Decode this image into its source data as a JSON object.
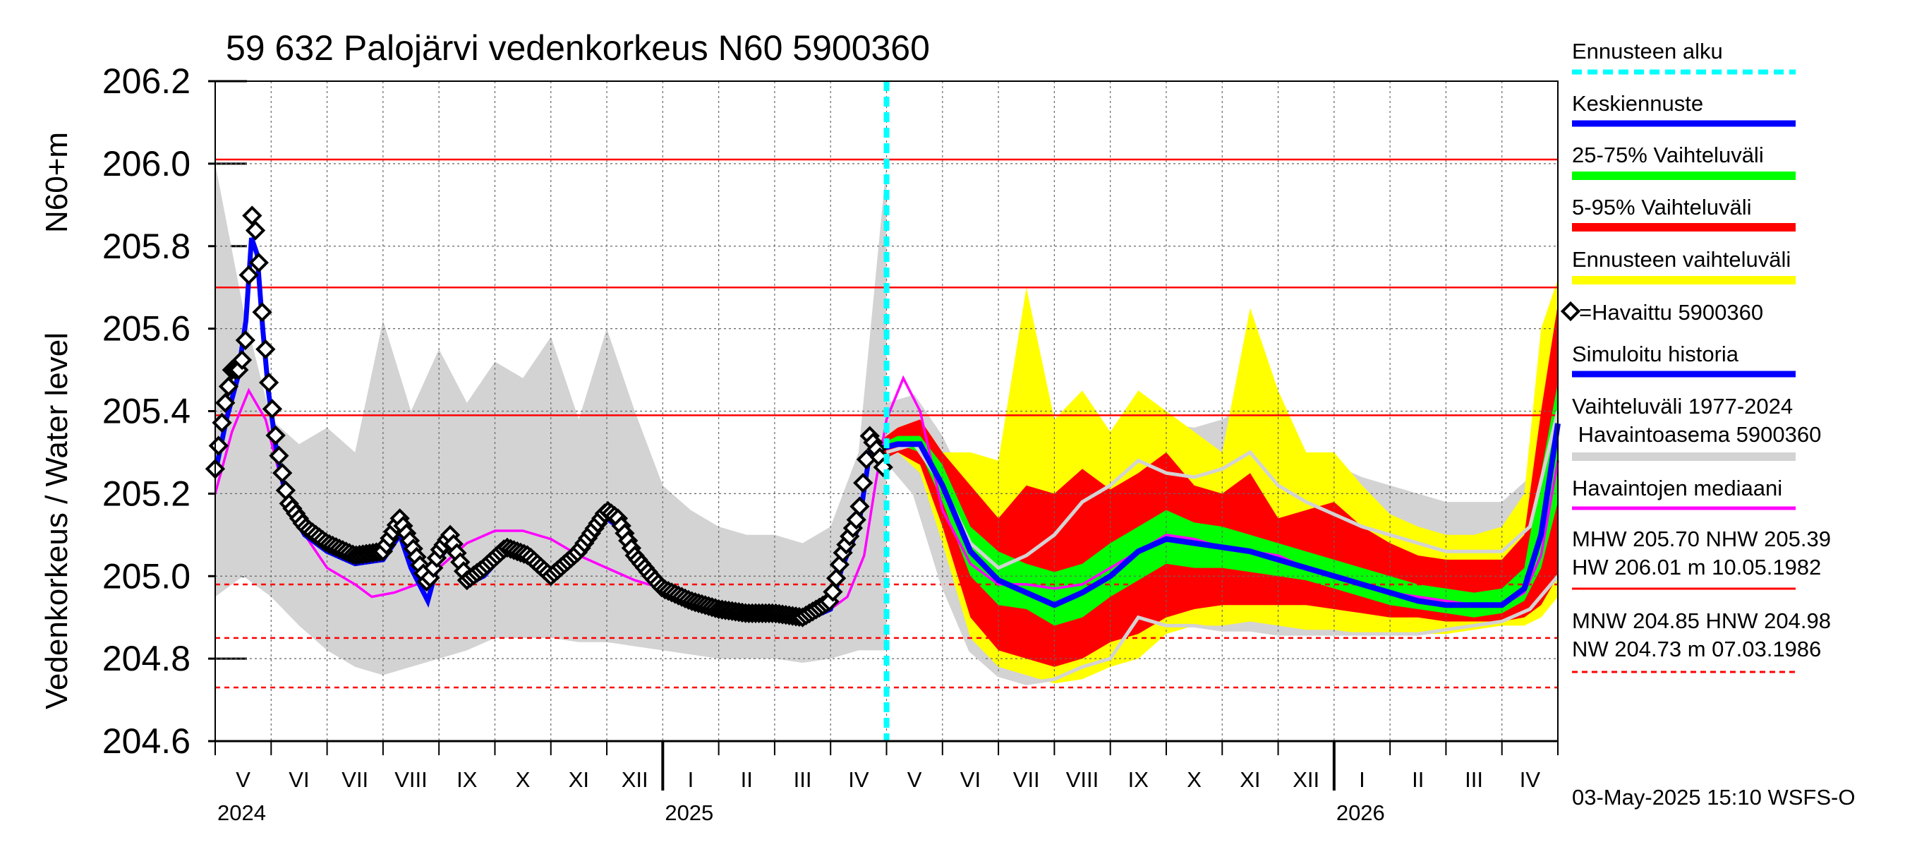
{
  "chart_data": {
    "type": "area",
    "title": "59 632 Palojärvi vedenkorkeus N60 5900360",
    "ylabel_main": "Vedenkorkeus / Water level",
    "ylabel_unit": "N60+m",
    "ylim": [
      204.6,
      206.2
    ],
    "yticks": [
      "204.6",
      "204.8",
      "205.0",
      "205.2",
      "205.4",
      "205.6",
      "205.8",
      "206.0",
      "206.2"
    ],
    "x_months": [
      "V",
      "VI",
      "VII",
      "VIII",
      "IX",
      "X",
      "XI",
      "XII",
      "I",
      "II",
      "III",
      "IV",
      "V",
      "VI",
      "VII",
      "VIII",
      "IX",
      "X",
      "XI",
      "XII",
      "I",
      "II",
      "III",
      "IV"
    ],
    "x_years": [
      "2024",
      "2025",
      "2026"
    ],
    "forecast_start_month_index": 12,
    "reference_lines": [
      {
        "value": 206.01,
        "style": "solid"
      },
      {
        "value": 205.7,
        "style": "solid"
      },
      {
        "value": 205.39,
        "style": "solid"
      },
      {
        "value": 204.98,
        "style": "dashed"
      },
      {
        "value": 204.85,
        "style": "dashed"
      },
      {
        "value": 204.73,
        "style": "dashed"
      }
    ],
    "historical_range": {
      "month_index": [
        0,
        0.5,
        1,
        1.5,
        2,
        2.5,
        3,
        3.5,
        4,
        4.5,
        5,
        5.5,
        6,
        6.5,
        7,
        7.5,
        8,
        8.5,
        9,
        9.5,
        10,
        10.5,
        11,
        11.5,
        12
      ],
      "low": [
        204.95,
        205.0,
        204.95,
        204.88,
        204.82,
        204.78,
        204.76,
        204.78,
        204.8,
        204.82,
        204.85,
        204.85,
        204.85,
        204.84,
        204.84,
        204.83,
        204.82,
        204.81,
        204.8,
        204.8,
        204.8,
        204.79,
        204.8,
        204.82,
        204.82
      ],
      "high": [
        206.0,
        205.65,
        205.38,
        205.32,
        205.36,
        205.3,
        205.62,
        205.4,
        205.55,
        205.42,
        205.52,
        205.48,
        205.58,
        205.38,
        205.6,
        205.4,
        205.22,
        205.16,
        205.12,
        205.1,
        205.1,
        205.08,
        205.12,
        205.3,
        206.0
      ]
    },
    "forecast": {
      "month_index": [
        11.9,
        12.2,
        12.6,
        13.0,
        13.5,
        14.0,
        14.5,
        15.0,
        15.5,
        16.0,
        16.5,
        17.0,
        17.5,
        18.0,
        18.5,
        19.0,
        19.5,
        20.0,
        20.5,
        21.0,
        21.5,
        22.0,
        22.5,
        23.0,
        23.4,
        23.7,
        24.0
      ],
      "p0": [
        205.28,
        205.3,
        205.25,
        205.08,
        204.85,
        204.78,
        204.76,
        204.74,
        204.75,
        204.78,
        204.8,
        204.86,
        204.88,
        204.88,
        204.89,
        204.88,
        204.87,
        204.87,
        204.86,
        204.86,
        204.86,
        204.86,
        204.87,
        204.88,
        204.88,
        204.9,
        204.95
      ],
      "p5": [
        205.28,
        205.3,
        205.27,
        205.12,
        204.9,
        204.82,
        204.8,
        204.78,
        204.8,
        204.84,
        204.86,
        204.9,
        204.92,
        204.93,
        204.93,
        204.93,
        204.93,
        204.92,
        204.91,
        204.9,
        204.9,
        204.89,
        204.89,
        204.89,
        204.9,
        204.93,
        205.0
      ],
      "p25": [
        205.3,
        205.32,
        205.3,
        205.18,
        205.0,
        204.93,
        204.92,
        204.88,
        204.9,
        204.95,
        204.99,
        205.03,
        205.02,
        205.02,
        205.01,
        205.0,
        204.99,
        204.97,
        204.95,
        204.93,
        204.92,
        204.91,
        204.9,
        204.91,
        204.94,
        205.02,
        205.18
      ],
      "p50": [
        205.31,
        205.32,
        205.32,
        205.22,
        205.06,
        204.99,
        204.96,
        204.93,
        204.96,
        205.0,
        205.06,
        205.09,
        205.08,
        205.07,
        205.06,
        205.04,
        205.02,
        205.0,
        204.98,
        204.96,
        204.94,
        204.93,
        204.93,
        204.93,
        204.97,
        205.1,
        205.37
      ],
      "p75": [
        205.32,
        205.34,
        205.34,
        205.27,
        205.12,
        205.06,
        205.03,
        205.01,
        205.03,
        205.08,
        205.12,
        205.16,
        205.13,
        205.12,
        205.1,
        205.08,
        205.06,
        205.04,
        205.02,
        205.0,
        204.98,
        204.97,
        204.96,
        204.97,
        205.02,
        205.25,
        205.47
      ],
      "p95": [
        205.33,
        205.36,
        205.38,
        205.3,
        205.22,
        205.14,
        205.22,
        205.2,
        205.26,
        205.21,
        205.25,
        205.3,
        205.22,
        205.2,
        205.25,
        205.14,
        205.16,
        205.18,
        205.12,
        205.08,
        205.05,
        205.04,
        205.04,
        205.04,
        205.1,
        205.4,
        205.66
      ],
      "p100": [
        205.33,
        205.36,
        205.38,
        205.3,
        205.3,
        205.28,
        205.7,
        205.38,
        205.45,
        205.35,
        205.45,
        205.4,
        205.35,
        205.3,
        205.65,
        205.45,
        205.3,
        205.3,
        205.22,
        205.15,
        205.12,
        205.1,
        205.1,
        205.12,
        205.2,
        205.6,
        205.72
      ]
    },
    "observed": {
      "name": "=Havaittu 5900360",
      "month_index": [
        0,
        0.15,
        0.3,
        0.45,
        0.55,
        0.65,
        0.75,
        0.85,
        0.95,
        1.1,
        1.3,
        1.6,
        2.0,
        2.5,
        3.0,
        3.3,
        3.5,
        3.8,
        4.0,
        4.2,
        4.5,
        4.8,
        5.2,
        5.6,
        6.0,
        6.5,
        7.0,
        7.2,
        7.5,
        7.8,
        8.0,
        8.5,
        9.0,
        9.5,
        10.0,
        10.5,
        11.0,
        11.2,
        11.5,
        11.7,
        11.85,
        12.0
      ],
      "values": [
        205.26,
        205.4,
        205.5,
        205.5,
        205.58,
        205.88,
        205.82,
        205.62,
        205.48,
        205.32,
        205.18,
        205.12,
        205.08,
        205.05,
        205.06,
        205.14,
        205.08,
        204.98,
        205.06,
        205.1,
        204.99,
        205.02,
        205.07,
        205.05,
        205.0,
        205.06,
        205.16,
        205.14,
        205.05,
        205.0,
        204.97,
        204.94,
        204.92,
        204.91,
        204.91,
        204.9,
        204.94,
        205.05,
        205.15,
        205.34,
        205.3,
        205.24
      ]
    },
    "simulated": {
      "name": "Simuloitu historia",
      "month_index": [
        0,
        0.2,
        0.4,
        0.55,
        0.65,
        0.75,
        0.85,
        0.95,
        1.1,
        1.3,
        1.6,
        2.0,
        2.5,
        3.0,
        3.3,
        3.5,
        3.8,
        4.0,
        4.2,
        4.5,
        4.8,
        5.2,
        5.6,
        6.0,
        6.5,
        7.0,
        7.2,
        7.5,
        7.8,
        8.0,
        8.5,
        9.0,
        9.5,
        10.0,
        10.5,
        11.0,
        11.2,
        11.5,
        11.7,
        11.9
      ],
      "values": [
        205.25,
        205.38,
        205.48,
        205.62,
        205.82,
        205.78,
        205.6,
        205.45,
        205.3,
        205.17,
        205.1,
        205.06,
        205.03,
        205.04,
        205.1,
        205.02,
        204.94,
        205.04,
        205.08,
        204.98,
        205.0,
        205.06,
        205.04,
        204.99,
        205.05,
        205.14,
        205.12,
        205.04,
        204.99,
        204.96,
        204.93,
        204.91,
        204.9,
        204.9,
        204.89,
        204.92,
        205.02,
        205.12,
        205.3,
        205.32
      ]
    },
    "median": {
      "name": "Havaintojen mediaani",
      "month_index": [
        0,
        0.3,
        0.6,
        0.9,
        1.2,
        1.6,
        2.0,
        2.5,
        2.8,
        3.2,
        3.6,
        4.0,
        4.5,
        5.0,
        5.5,
        6.0,
        6.5,
        7.0,
        7.5,
        8.0,
        8.5,
        9.0,
        9.5,
        10.0,
        10.5,
        11.0,
        11.3,
        11.6,
        11.8,
        12.0,
        12.3,
        12.6,
        13.0,
        13.5,
        14.0,
        14.5,
        15.0,
        15.5,
        16.0,
        16.5,
        17.0,
        17.5,
        18.0,
        18.5,
        19.0,
        19.5,
        20.0,
        20.5,
        21.0,
        21.5,
        22.0,
        22.5,
        23.0,
        23.4,
        23.7,
        24.0
      ],
      "values": [
        205.2,
        205.35,
        205.45,
        205.38,
        205.22,
        205.1,
        205.02,
        204.98,
        204.95,
        204.96,
        204.98,
        205.02,
        205.08,
        205.11,
        205.11,
        205.09,
        205.05,
        205.02,
        204.99,
        204.97,
        204.95,
        204.93,
        204.92,
        204.91,
        204.91,
        204.92,
        204.95,
        205.05,
        205.22,
        205.38,
        205.48,
        205.4,
        205.16,
        205.03,
        204.98,
        204.98,
        204.97,
        204.98,
        205.02,
        205.06,
        205.1,
        205.09,
        205.07,
        205.06,
        205.05,
        205.02,
        205.0,
        204.98,
        204.96,
        204.95,
        204.94,
        204.93,
        204.93,
        204.96,
        205.05,
        205.28
      ]
    },
    "forecast_low_history": {
      "month_index": [
        12.0,
        12.5,
        13.0,
        13.5,
        14.0,
        14.5,
        15.0,
        15.5,
        16.0,
        16.5,
        17.0,
        17.5,
        18.0,
        18.5,
        19.0,
        19.5,
        20.0,
        20.5,
        21.0,
        21.5,
        22.0,
        22.5,
        23.0,
        23.5,
        24.0
      ],
      "values": [
        205.28,
        205.2,
        204.98,
        204.82,
        204.76,
        204.74,
        204.75,
        204.78,
        204.8,
        204.9,
        204.88,
        204.88,
        204.87,
        204.87,
        204.86,
        204.86,
        204.86,
        204.86,
        204.86,
        204.86,
        204.87,
        204.88,
        204.89,
        204.92,
        205.0
      ]
    },
    "forecast_high_history": {
      "month_index": [
        12.0,
        12.5,
        13.0,
        13.5,
        14.0,
        14.5,
        15.0,
        15.5,
        16.0,
        16.5,
        17.0,
        17.5,
        18.0,
        18.5,
        19.0,
        19.5,
        20.0,
        20.5,
        21.0,
        21.5,
        22.0,
        22.5,
        23.0,
        23.5,
        24.0
      ],
      "values": [
        205.3,
        205.32,
        205.22,
        205.08,
        205.02,
        205.05,
        205.1,
        205.18,
        205.22,
        205.28,
        205.25,
        205.24,
        205.26,
        205.3,
        205.22,
        205.18,
        205.15,
        205.12,
        205.1,
        205.08,
        205.06,
        205.06,
        205.06,
        205.12,
        205.4
      ]
    },
    "colors": {
      "observed": "#000000",
      "simulated": "#0000ff",
      "median": "#ff00ff",
      "range": "#d3d3d3",
      "forecast_outer": "#ffff00",
      "forecast_5_95": "#ff0000",
      "forecast_25_75": "#00ff00",
      "forecast_mean": "#0000ff",
      "forecast_start": "#00ffff",
      "reference": "#ff0000",
      "forecast_history": "#d3d3d3"
    },
    "legend_placement": "right"
  },
  "legend": {
    "forecast_start": "Ennusteen alku",
    "mean": "Keskiennuste",
    "p25_75": "25-75% Vaihteluväli",
    "p5_95": "5-95% Vaihteluväli",
    "range": "Ennusteen vaihteluväli",
    "observed": "=Havaittu 5900360",
    "simulated": "Simuloitu historia",
    "hist_range_1": "Vaihteluväli 1977-2024",
    "hist_range_2": " Havaintoasema 5900360",
    "median": "Havaintojen mediaani",
    "stats_1": "MHW 205.70 NHW 205.39",
    "stats_2": "HW 206.01 m 10.05.1982",
    "stats_3": "MNW 204.85 HNW 204.98",
    "stats_4": "NW 204.73 m 07.03.1986"
  },
  "footer": "03-May-2025 15:10 WSFS-O"
}
